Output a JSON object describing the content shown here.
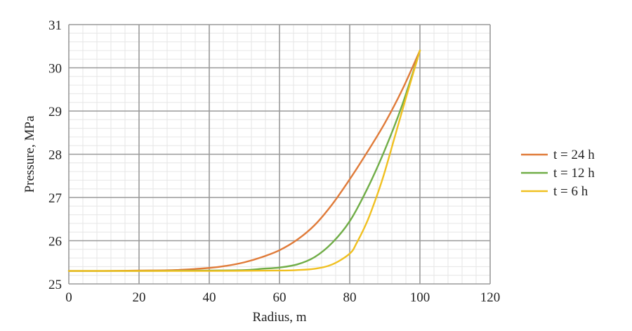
{
  "chart_data": {
    "type": "line",
    "xlabel": "Radius, m",
    "ylabel": "Pressure, MPa",
    "xlim": [
      0,
      120
    ],
    "ylim": [
      25,
      31
    ],
    "x_ticks": [
      0,
      20,
      40,
      60,
      80,
      100,
      120
    ],
    "y_ticks": [
      25,
      26,
      27,
      28,
      29,
      30,
      31
    ],
    "grid": true,
    "legend_position": "right",
    "series": [
      {
        "name": "t = 24 h",
        "color": "#e07b39",
        "x": [
          0,
          10,
          20,
          30,
          40,
          45,
          50,
          55,
          60,
          65,
          70,
          75,
          80,
          85,
          90,
          95,
          100
        ],
        "y": [
          25.3,
          25.3,
          25.31,
          25.32,
          25.37,
          25.42,
          25.5,
          25.62,
          25.78,
          26.02,
          26.36,
          26.84,
          27.42,
          28.05,
          28.72,
          29.5,
          30.4
        ]
      },
      {
        "name": "t = 12 h",
        "color": "#70ad47",
        "x": [
          0,
          20,
          40,
          50,
          55,
          60,
          65,
          70,
          75,
          80,
          85,
          90,
          95,
          100
        ],
        "y": [
          25.3,
          25.3,
          25.31,
          25.32,
          25.35,
          25.38,
          25.45,
          25.62,
          25.95,
          26.45,
          27.2,
          28.1,
          29.15,
          30.4
        ]
      },
      {
        "name": "t = 6 h",
        "color": "#f0c020",
        "x": [
          0,
          20,
          40,
          60,
          65,
          70,
          75,
          80,
          82,
          85,
          88,
          90,
          93,
          96,
          100
        ],
        "y": [
          25.3,
          25.3,
          25.3,
          25.31,
          25.32,
          25.35,
          25.45,
          25.7,
          25.95,
          26.45,
          27.1,
          27.6,
          28.45,
          29.3,
          30.4
        ]
      }
    ]
  }
}
